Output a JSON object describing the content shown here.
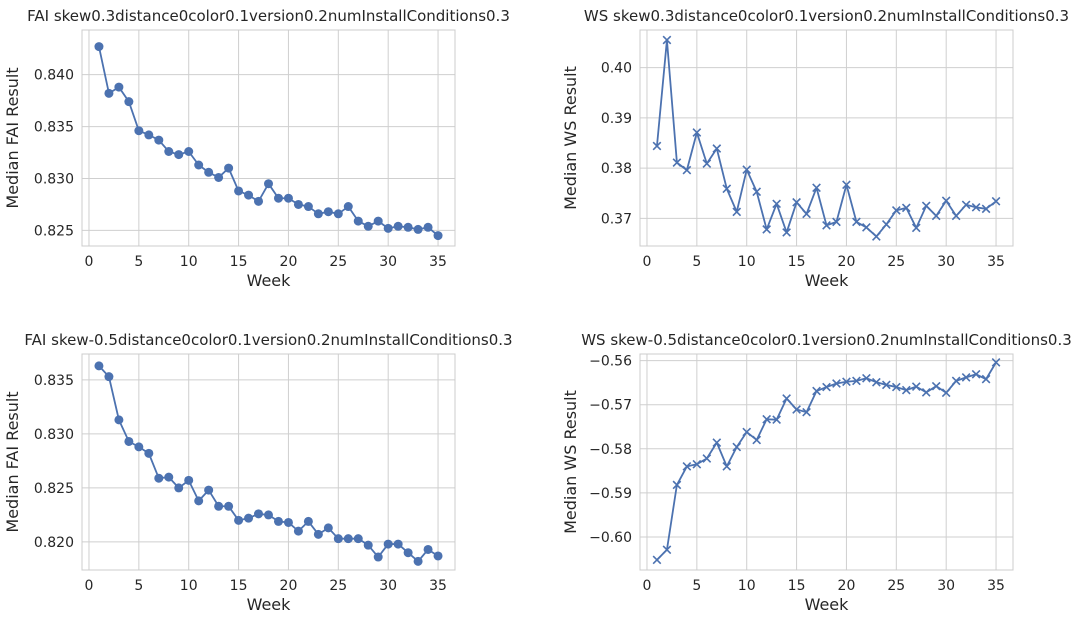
{
  "chart_data": [
    {
      "type": "line",
      "title": "FAI skew0.3distance0color0.1version0.2numInstallConditions0.3",
      "xlabel": "Week",
      "ylabel": "Median FAI Result",
      "marker": "circle",
      "color": "#4c72b0",
      "grid": true,
      "xlim": [
        -0.7,
        36.7
      ],
      "ylim": [
        0.8235,
        0.8443
      ],
      "xticks": [
        0,
        5,
        10,
        15,
        20,
        25,
        30,
        35
      ],
      "yticks": [
        0.825,
        0.83,
        0.835,
        0.84
      ],
      "ytick_labels": [
        "0.825",
        "0.830",
        "0.835",
        "0.840"
      ],
      "x": [
        1,
        2,
        3,
        4,
        5,
        6,
        7,
        8,
        9,
        10,
        11,
        12,
        13,
        14,
        15,
        16,
        17,
        18,
        19,
        20,
        21,
        22,
        23,
        24,
        25,
        26,
        27,
        28,
        29,
        30,
        31,
        32,
        33,
        34,
        35
      ],
      "values": [
        0.8427,
        0.8382,
        0.8388,
        0.8374,
        0.8346,
        0.8342,
        0.8337,
        0.8326,
        0.8323,
        0.8326,
        0.8313,
        0.8306,
        0.8301,
        0.831,
        0.8288,
        0.8284,
        0.8278,
        0.8295,
        0.8281,
        0.8281,
        0.8275,
        0.8273,
        0.8266,
        0.8268,
        0.8266,
        0.8273,
        0.8259,
        0.8254,
        0.8259,
        0.8252,
        0.8254,
        0.8253,
        0.8251,
        0.8253,
        0.8245
      ]
    },
    {
      "type": "line",
      "title": "WS skew0.3distance0color0.1version0.2numInstallConditions0.3",
      "xlabel": "Week",
      "ylabel": "Median WS Result",
      "marker": "x",
      "color": "#4c72b0",
      "grid": true,
      "xlim": [
        -0.7,
        36.7
      ],
      "ylim": [
        0.3645,
        0.4075
      ],
      "xticks": [
        0,
        5,
        10,
        15,
        20,
        25,
        30,
        35
      ],
      "yticks": [
        0.37,
        0.38,
        0.39,
        0.4
      ],
      "ytick_labels": [
        "0.37",
        "0.38",
        "0.39",
        "0.40"
      ],
      "x": [
        1,
        2,
        3,
        4,
        5,
        6,
        7,
        8,
        9,
        10,
        11,
        12,
        13,
        14,
        15,
        16,
        17,
        18,
        19,
        20,
        21,
        22,
        23,
        24,
        25,
        26,
        27,
        28,
        29,
        30,
        31,
        32,
        33,
        34,
        35
      ],
      "values": [
        0.3844,
        0.4055,
        0.3811,
        0.3796,
        0.3871,
        0.3809,
        0.3839,
        0.3759,
        0.3713,
        0.3797,
        0.3753,
        0.3678,
        0.3729,
        0.3672,
        0.3732,
        0.3709,
        0.3761,
        0.3686,
        0.3693,
        0.3767,
        0.3693,
        0.3682,
        0.3664,
        0.3688,
        0.3716,
        0.3721,
        0.3681,
        0.3725,
        0.3705,
        0.3735,
        0.3705,
        0.3727,
        0.3722,
        0.3719,
        0.3734
      ]
    },
    {
      "type": "line",
      "title": "FAI skew-0.5distance0color0.1version0.2numInstallConditions0.3",
      "xlabel": "Week",
      "ylabel": "Median FAI Result",
      "marker": "circle",
      "color": "#4c72b0",
      "grid": true,
      "xlim": [
        -0.7,
        36.7
      ],
      "ylim": [
        0.8174,
        0.8374
      ],
      "xticks": [
        0,
        5,
        10,
        15,
        20,
        25,
        30,
        35
      ],
      "yticks": [
        0.82,
        0.825,
        0.83,
        0.835
      ],
      "ytick_labels": [
        "0.820",
        "0.825",
        "0.830",
        "0.835"
      ],
      "x": [
        1,
        2,
        3,
        4,
        5,
        6,
        7,
        8,
        9,
        10,
        11,
        12,
        13,
        14,
        15,
        16,
        17,
        18,
        19,
        20,
        21,
        22,
        23,
        24,
        25,
        26,
        27,
        28,
        29,
        30,
        31,
        32,
        33,
        34,
        35
      ],
      "values": [
        0.8363,
        0.8353,
        0.8313,
        0.8293,
        0.8288,
        0.8282,
        0.8259,
        0.826,
        0.825,
        0.8257,
        0.8238,
        0.8248,
        0.8233,
        0.8233,
        0.822,
        0.8222,
        0.8226,
        0.8225,
        0.8219,
        0.8218,
        0.821,
        0.8219,
        0.8207,
        0.8213,
        0.8203,
        0.8203,
        0.8203,
        0.8197,
        0.8186,
        0.8198,
        0.8198,
        0.819,
        0.8182,
        0.8193,
        0.8187
      ]
    },
    {
      "type": "line",
      "title": "WS skew-0.5distance0color0.1version0.2numInstallConditions0.3",
      "xlabel": "Week",
      "ylabel": "Median WS Result",
      "marker": "x",
      "color": "#4c72b0",
      "grid": true,
      "xlim": [
        -0.7,
        36.7
      ],
      "ylim": [
        -0.6075,
        -0.5585
      ],
      "xticks": [
        0,
        5,
        10,
        15,
        20,
        25,
        30,
        35
      ],
      "yticks": [
        -0.6,
        -0.59,
        -0.58,
        -0.57,
        -0.56
      ],
      "ytick_labels": [
        "−0.60",
        "−0.59",
        "−0.58",
        "−0.57",
        "−0.56"
      ],
      "x": [
        1,
        2,
        3,
        4,
        5,
        6,
        7,
        8,
        9,
        10,
        11,
        12,
        13,
        14,
        15,
        16,
        17,
        18,
        19,
        20,
        21,
        22,
        23,
        24,
        25,
        26,
        27,
        28,
        29,
        30,
        31,
        32,
        33,
        34,
        35
      ],
      "values": [
        -0.6052,
        -0.6029,
        -0.5882,
        -0.584,
        -0.5835,
        -0.5822,
        -0.5786,
        -0.584,
        -0.5796,
        -0.5762,
        -0.578,
        -0.5733,
        -0.5734,
        -0.5686,
        -0.5711,
        -0.5717,
        -0.5669,
        -0.566,
        -0.5652,
        -0.5648,
        -0.5646,
        -0.564,
        -0.5649,
        -0.5655,
        -0.566,
        -0.5667,
        -0.5659,
        -0.5672,
        -0.5658,
        -0.5673,
        -0.5646,
        -0.5638,
        -0.5631,
        -0.5642,
        -0.5604
      ]
    }
  ]
}
